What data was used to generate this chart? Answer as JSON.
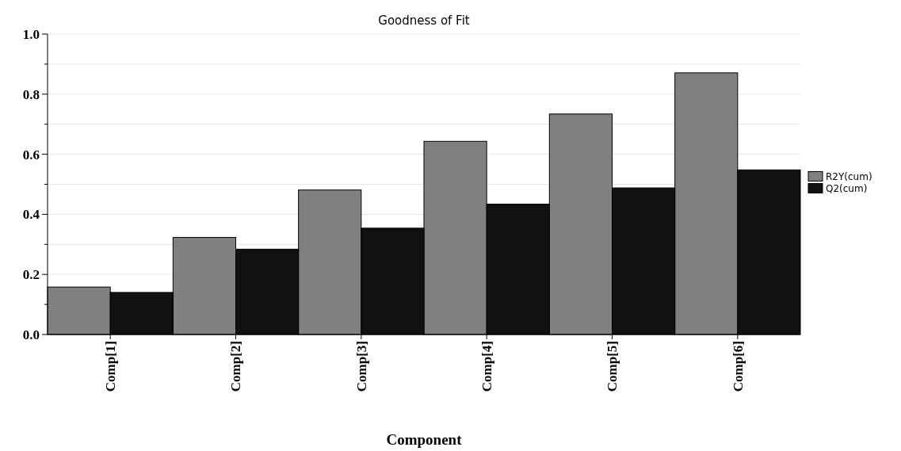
{
  "chart_data": {
    "type": "bar",
    "title": "Goodness of Fit",
    "xlabel": "Component",
    "categories": [
      "Comp[1]",
      "Comp[2]",
      "Comp[3]",
      "Comp[4]",
      "Comp[5]",
      "Comp[6]"
    ],
    "series": [
      {
        "name": "R2Y(cum)",
        "color": "#808080",
        "values": [
          0.158,
          0.323,
          0.481,
          0.643,
          0.734,
          0.871
        ]
      },
      {
        "name": "Q2(cum)",
        "color": "#111111",
        "values": [
          0.14,
          0.284,
          0.354,
          0.434,
          0.488,
          0.548
        ]
      }
    ],
    "ylim": [
      0,
      1
    ],
    "yticks": [
      {
        "value": 0,
        "label": "0.0"
      },
      {
        "value": 0.1,
        "label": null
      },
      {
        "value": 0.2,
        "label": "0.2"
      },
      {
        "value": 0.3,
        "label": null
      },
      {
        "value": 0.4,
        "label": "0.4"
      },
      {
        "value": 0.5,
        "label": null
      },
      {
        "value": 0.6,
        "label": "0.6"
      },
      {
        "value": 0.7,
        "label": null
      },
      {
        "value": 0.8,
        "label": "0.8"
      },
      {
        "value": 0.9,
        "label": null
      },
      {
        "value": 1,
        "label": "1.0"
      }
    ],
    "grid": "y",
    "legend": "right"
  }
}
